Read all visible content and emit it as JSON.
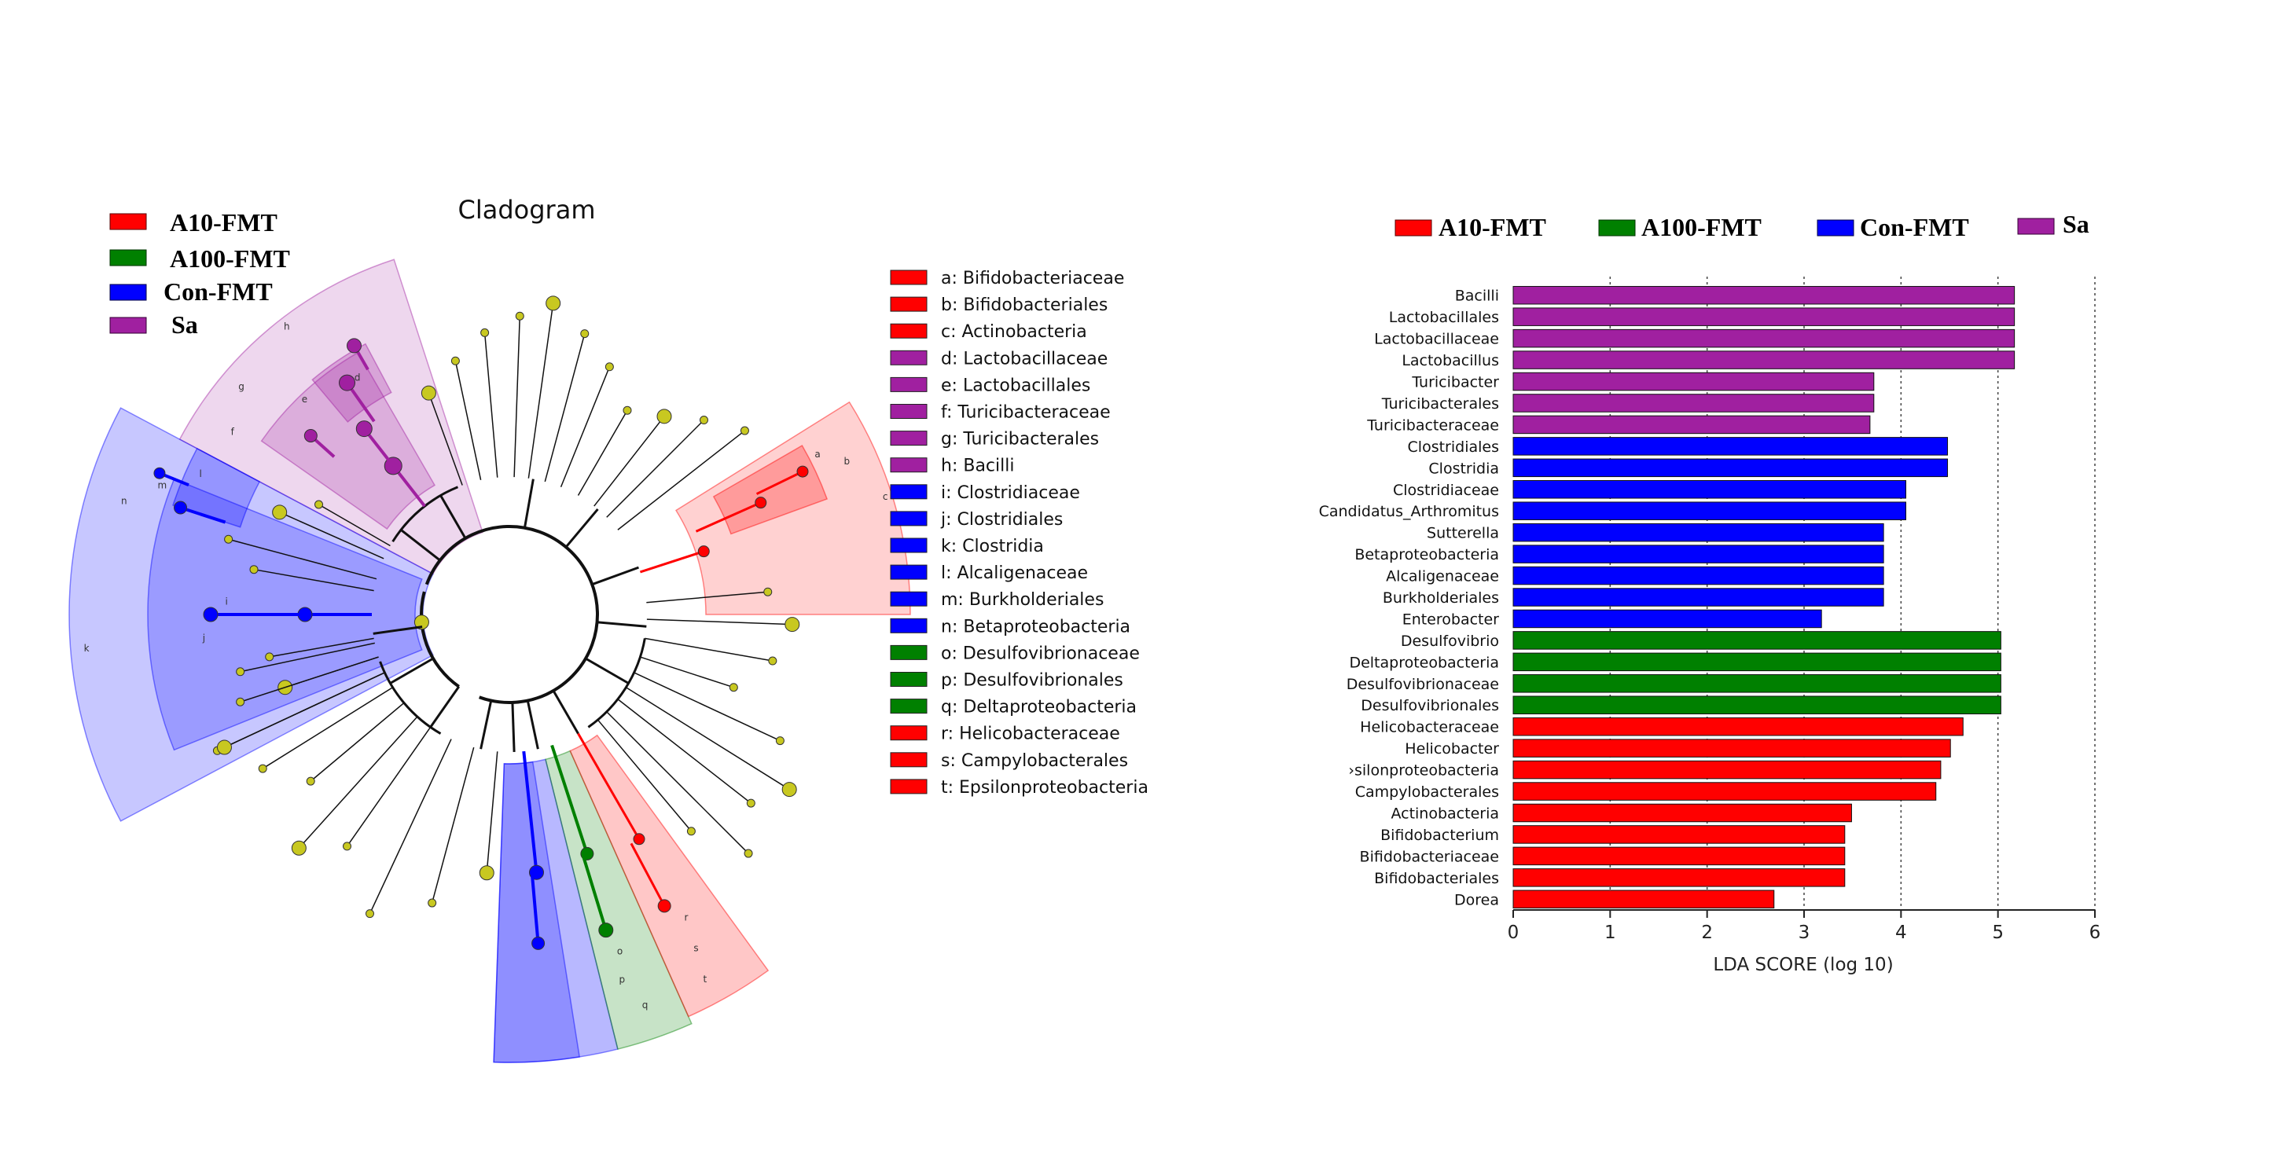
{
  "groups": [
    {
      "name": "A10-FMT",
      "color": "#ff0000"
    },
    {
      "name": "A100-FMT",
      "color": "#008000"
    },
    {
      "name": "Con-FMT",
      "color": "#0000ff"
    },
    {
      "name": "Sa",
      "color": "#a020a0"
    }
  ],
  "cladogram": {
    "title": "Cladogram",
    "node_color": "#c8c820",
    "clade_tags": [
      "a",
      "b",
      "c",
      "d",
      "e",
      "f",
      "g",
      "h",
      "i",
      "j",
      "k",
      "l",
      "m",
      "n",
      "o",
      "p",
      "q",
      "r",
      "s",
      "t"
    ],
    "legend": [
      {
        "label": "a: Bifidobacteriaceae",
        "group": "A10-FMT"
      },
      {
        "label": "b: Bifidobacteriales",
        "group": "A10-FMT"
      },
      {
        "label": "c: Actinobacteria",
        "group": "A10-FMT"
      },
      {
        "label": "d: Lactobacillaceae",
        "group": "Sa"
      },
      {
        "label": "e: Lactobacillales",
        "group": "Sa"
      },
      {
        "label": "f: Turicibacteraceae",
        "group": "Sa"
      },
      {
        "label": "g: Turicibacterales",
        "group": "Sa"
      },
      {
        "label": "h: Bacilli",
        "group": "Sa"
      },
      {
        "label": "i: Clostridiaceae",
        "group": "Con-FMT"
      },
      {
        "label": "j: Clostridiales",
        "group": "Con-FMT"
      },
      {
        "label": "k: Clostridia",
        "group": "Con-FMT"
      },
      {
        "label": "l: Alcaligenaceae",
        "group": "Con-FMT"
      },
      {
        "label": "m: Burkholderiales",
        "group": "Con-FMT"
      },
      {
        "label": "n: Betaproteobacteria",
        "group": "Con-FMT"
      },
      {
        "label": "o: Desulfovibrionaceae",
        "group": "A100-FMT"
      },
      {
        "label": "p: Desulfovibrionales",
        "group": "A100-FMT"
      },
      {
        "label": "q: Deltaproteobacteria",
        "group": "A100-FMT"
      },
      {
        "label": "r: Helicobacteraceae",
        "group": "A10-FMT"
      },
      {
        "label": "s: Campylobacterales",
        "group": "A10-FMT"
      },
      {
        "label": "t: Epsilonproteobacteria",
        "group": "A10-FMT"
      }
    ]
  },
  "chart_data": {
    "type": "bar",
    "orientation": "horizontal",
    "xlabel": "LDA SCORE (log 10)",
    "xlim": [
      0,
      6
    ],
    "xticks": [
      0,
      1,
      2,
      3,
      4,
      5,
      6
    ],
    "grid": "vertical dotted",
    "legend_position": "top",
    "bars": [
      {
        "label": "Bacilli",
        "value": 5.17,
        "group": "Sa"
      },
      {
        "label": "Lactobacillales",
        "value": 5.17,
        "group": "Sa"
      },
      {
        "label": "Lactobacillaceae",
        "value": 5.17,
        "group": "Sa"
      },
      {
        "label": "Lactobacillus",
        "value": 5.17,
        "group": "Sa"
      },
      {
        "label": "Turicibacter",
        "value": 3.72,
        "group": "Sa"
      },
      {
        "label": "Turicibacterales",
        "value": 3.72,
        "group": "Sa"
      },
      {
        "label": "Turicibacteraceae",
        "value": 3.68,
        "group": "Sa"
      },
      {
        "label": "Clostridiales",
        "value": 4.48,
        "group": "Con-FMT"
      },
      {
        "label": "Clostridia",
        "value": 4.48,
        "group": "Con-FMT"
      },
      {
        "label": "Clostridiaceae",
        "value": 4.05,
        "group": "Con-FMT"
      },
      {
        "label": "Candidatus_Arthromitus",
        "value": 4.05,
        "group": "Con-FMT"
      },
      {
        "label": "Sutterella",
        "value": 3.82,
        "group": "Con-FMT"
      },
      {
        "label": "Betaproteobacteria",
        "value": 3.82,
        "group": "Con-FMT"
      },
      {
        "label": "Alcaligenaceae",
        "value": 3.82,
        "group": "Con-FMT"
      },
      {
        "label": "Burkholderiales",
        "value": 3.82,
        "group": "Con-FMT"
      },
      {
        "label": "Enterobacter",
        "value": 3.18,
        "group": "Con-FMT"
      },
      {
        "label": "Desulfovibrio",
        "value": 5.03,
        "group": "A100-FMT"
      },
      {
        "label": "Deltaproteobacteria",
        "value": 5.03,
        "group": "A100-FMT"
      },
      {
        "label": "Desulfovibrionaceae",
        "value": 5.03,
        "group": "A100-FMT"
      },
      {
        "label": "Desulfovibrionales",
        "value": 5.03,
        "group": "A100-FMT"
      },
      {
        "label": "Helicobacteraceae",
        "value": 4.64,
        "group": "A10-FMT"
      },
      {
        "label": "Helicobacter",
        "value": 4.51,
        "group": "A10-FMT"
      },
      {
        "label": "›silonproteobacteria",
        "value": 4.41,
        "group": "A10-FMT"
      },
      {
        "label": "Campylobacterales",
        "value": 4.36,
        "group": "A10-FMT"
      },
      {
        "label": "Actinobacteria",
        "value": 3.49,
        "group": "A10-FMT"
      },
      {
        "label": "Bifidobacterium",
        "value": 3.42,
        "group": "A10-FMT"
      },
      {
        "label": "Bifidobacteriaceae",
        "value": 3.42,
        "group": "A10-FMT"
      },
      {
        "label": "Bifidobacteriales",
        "value": 3.42,
        "group": "A10-FMT"
      },
      {
        "label": "Dorea",
        "value": 2.69,
        "group": "A10-FMT"
      }
    ]
  }
}
